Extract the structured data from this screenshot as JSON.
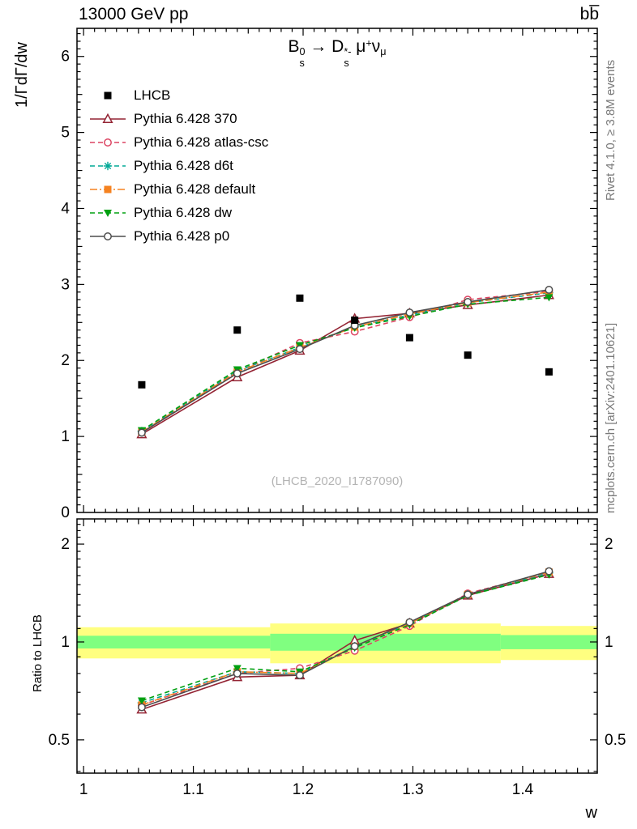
{
  "header": {
    "left": "13000 GeV pp",
    "right": "bb̅"
  },
  "side_texts": {
    "top_right": "Rivet 4.1.0, ≥ 3.8M events",
    "bottom_right": "mcplots.cern.ch [arXiv:2401.10621]"
  },
  "title_segments": [
    {
      "base": "B",
      "sup": "0",
      "sub": "s"
    },
    {
      "base": " → "
    },
    {
      "base": "D",
      "sup": "*-",
      "sub": "s"
    },
    {
      "base": " μ",
      "sup": "+"
    },
    {
      "base": "ν",
      "sub": "μ"
    }
  ],
  "chart_data": {
    "type": "line",
    "title": "B_s^0 → D_s^*- μ+ ν_μ",
    "xlabel": "w",
    "watermark": "(LHCB_2020_I1787090)",
    "x": [
      1.053,
      1.14,
      1.197,
      1.247,
      1.297,
      1.35,
      1.424
    ],
    "xlim": [
      0.994,
      1.468
    ],
    "xticks": [
      1,
      1.1,
      1.2,
      1.3,
      1.4
    ],
    "main": {
      "ylabel": "1/ΓdΓ/dw",
      "ylim": [
        0,
        6.37
      ],
      "yticks": [
        0,
        1,
        2,
        3,
        4,
        5,
        6
      ],
      "series": [
        {
          "name": "LHCB",
          "color": "#000000",
          "marker": "square-filled",
          "line": "none",
          "values": [
            1.68,
            2.4,
            2.82,
            2.53,
            2.3,
            2.07,
            1.85
          ]
        },
        {
          "name": "Pythia 6.428 370",
          "color": "#942434",
          "marker": "triangle-open",
          "line": "solid",
          "values": [
            1.03,
            1.78,
            2.13,
            2.55,
            2.62,
            2.73,
            2.86
          ]
        },
        {
          "name": "Pythia 6.428 atlas-csc",
          "color": "#dc4462",
          "marker": "circle-open",
          "line": "dashed",
          "values": [
            1.06,
            1.85,
            2.23,
            2.38,
            2.57,
            2.8,
            2.91
          ]
        },
        {
          "name": "Pythia 6.428 d6t",
          "color": "#00a896",
          "marker": "star",
          "line": "dashed",
          "values": [
            1.07,
            1.86,
            2.17,
            2.44,
            2.6,
            2.76,
            2.89
          ]
        },
        {
          "name": "Pythia 6.428 default",
          "color": "#f58220",
          "marker": "square-filled",
          "line": "dashdot",
          "values": [
            1.06,
            1.85,
            2.17,
            2.44,
            2.61,
            2.76,
            2.9
          ]
        },
        {
          "name": "Pythia 6.428 dw",
          "color": "#00a010",
          "marker": "triangle-down-filled",
          "line": "dashed",
          "values": [
            1.08,
            1.88,
            2.2,
            2.43,
            2.58,
            2.74,
            2.83
          ]
        },
        {
          "name": "Pythia 6.428 p0",
          "color": "#4d4d4d",
          "marker": "circle-open",
          "line": "solid",
          "values": [
            1.05,
            1.83,
            2.15,
            2.46,
            2.63,
            2.77,
            2.93
          ]
        }
      ]
    },
    "ratio": {
      "ylabel": "Ratio to LHCB",
      "yscale": "log",
      "ylim": [
        0.395,
        2.39
      ],
      "yticks": [
        0.5,
        1,
        2
      ],
      "bands": {
        "yellow": {
          "color": "#ffff80",
          "segments": [
            {
              "x0": 0.994,
              "x1": 1.17,
              "lo": 0.89,
              "hi": 1.11
            },
            {
              "x0": 1.17,
              "x1": 1.38,
              "lo": 0.86,
              "hi": 1.14
            },
            {
              "x0": 1.38,
              "x1": 1.468,
              "lo": 0.88,
              "hi": 1.12
            }
          ]
        },
        "green": {
          "color": "#80ff80",
          "segments": [
            {
              "x0": 0.994,
              "x1": 1.17,
              "lo": 0.955,
              "hi": 1.045
            },
            {
              "x0": 1.17,
              "x1": 1.38,
              "lo": 0.94,
              "hi": 1.06
            },
            {
              "x0": 1.38,
              "x1": 1.468,
              "lo": 0.95,
              "hi": 1.05
            }
          ]
        }
      },
      "series": [
        {
          "name": "Pythia 6.428 370",
          "values": [
            0.62,
            0.78,
            0.79,
            1.01,
            1.14,
            1.39,
            1.62
          ]
        },
        {
          "name": "Pythia 6.428 atlas-csc",
          "values": [
            0.64,
            0.8,
            0.83,
            0.94,
            1.12,
            1.41,
            1.64
          ]
        },
        {
          "name": "Pythia 6.428 d6t",
          "values": [
            0.65,
            0.81,
            0.8,
            0.97,
            1.14,
            1.4,
            1.63
          ]
        },
        {
          "name": "Pythia 6.428 default",
          "values": [
            0.64,
            0.81,
            0.8,
            0.97,
            1.14,
            1.4,
            1.64
          ]
        },
        {
          "name": "Pythia 6.428 dw",
          "values": [
            0.66,
            0.83,
            0.81,
            0.96,
            1.13,
            1.39,
            1.61
          ]
        },
        {
          "name": "Pythia 6.428 p0",
          "values": [
            0.63,
            0.8,
            0.79,
            0.97,
            1.15,
            1.4,
            1.65
          ]
        }
      ]
    }
  }
}
